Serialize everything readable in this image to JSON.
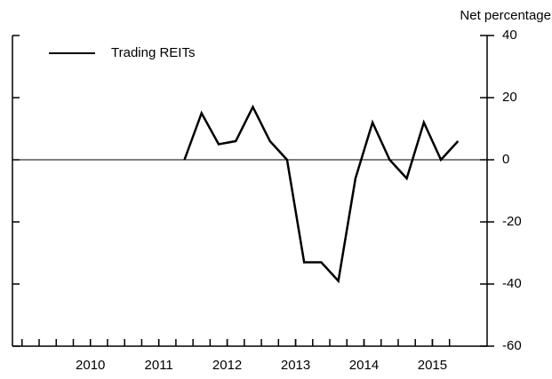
{
  "chart_data": {
    "type": "line",
    "y_axis_label": "Net percentage",
    "series": [
      {
        "name": "Trading REITs",
        "color": "#000000",
        "x": [
          2011.875,
          2012.125,
          2012.375,
          2012.625,
          2012.875,
          2013.125,
          2013.375,
          2013.625,
          2013.875,
          2014.125,
          2014.375,
          2014.625,
          2014.875,
          2015.125,
          2015.375,
          2015.625,
          2015.875
        ],
        "values": [
          0,
          15,
          5,
          6,
          17,
          6,
          0,
          -33,
          -33,
          -39,
          -6,
          12,
          0,
          -6,
          12,
          0,
          6
        ]
      }
    ],
    "xlim": [
      2009.36,
      2016.3
    ],
    "xticks": [
      {
        "value": 2010.5,
        "label": "2010"
      },
      {
        "value": 2011.5,
        "label": "2011"
      },
      {
        "value": 2012.5,
        "label": "2012"
      },
      {
        "value": 2013.5,
        "label": "2013"
      },
      {
        "value": 2014.5,
        "label": "2014"
      },
      {
        "value": 2015.5,
        "label": "2015"
      }
    ],
    "ylim": [
      -60,
      40
    ],
    "yticks": [
      -60,
      -40,
      -20,
      0,
      20,
      40
    ],
    "legend": "upper left"
  }
}
